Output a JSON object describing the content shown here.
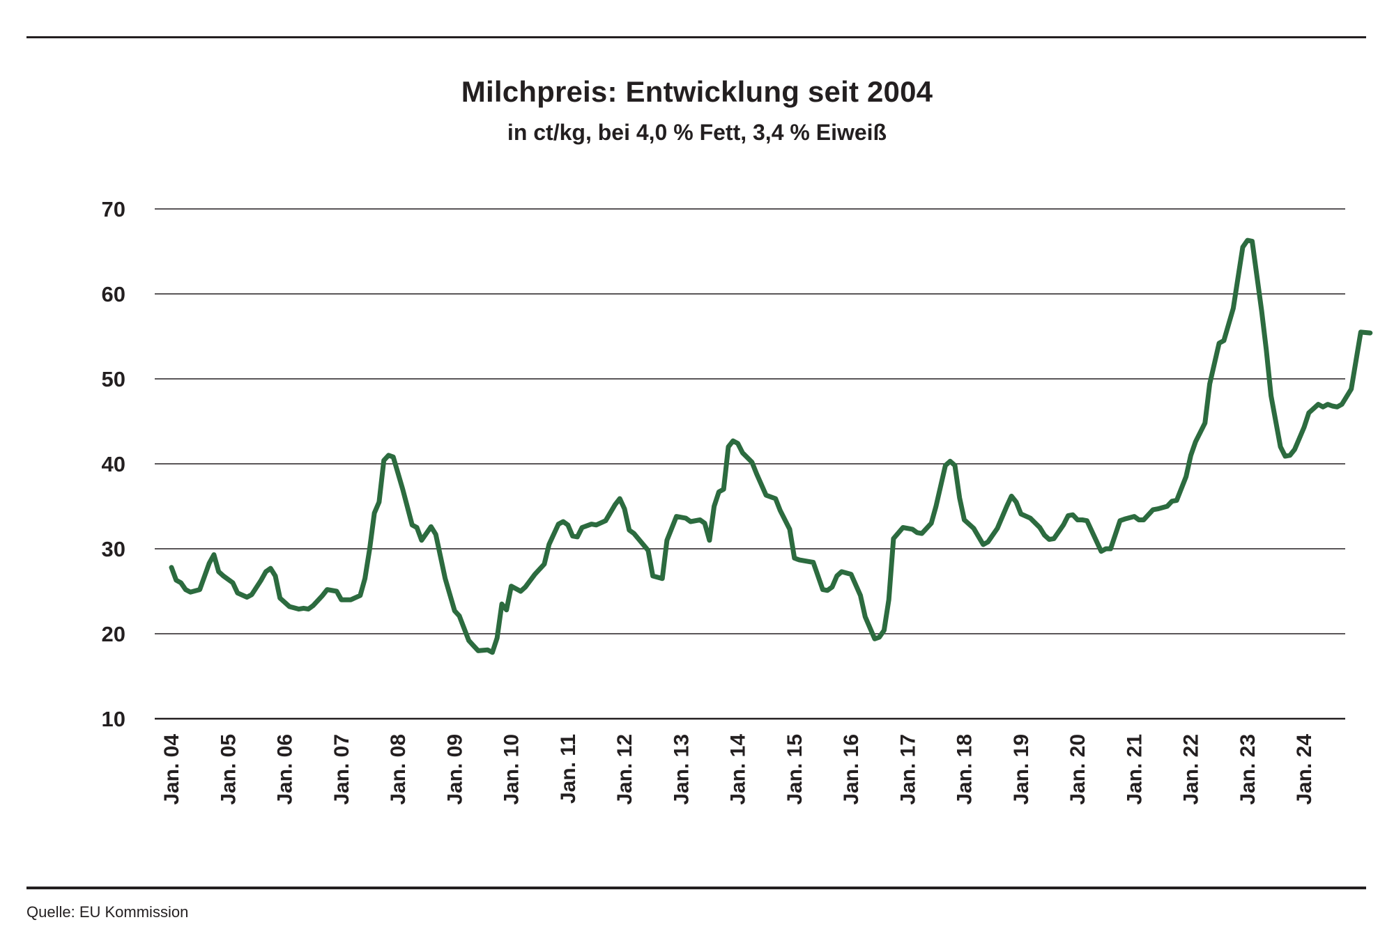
{
  "chart_data": {
    "type": "line",
    "title": "Milchpreis: Entwicklung seit 2004",
    "subtitle": "in ct/kg, bei 4,0 % Fett, 3,4 % Eiweiß",
    "xlabel": "",
    "ylabel": "",
    "ylim": [
      10,
      70
    ],
    "yticks": [
      10,
      20,
      30,
      40,
      50,
      60,
      70
    ],
    "grid": true,
    "color": "#2c6b3f",
    "x_start": "2004-01",
    "x_end": "2024-10",
    "xtick_labels": [
      "Jan. 04",
      "Jan. 05",
      "Jan. 06",
      "Jan. 07",
      "Jan. 08",
      "Jan. 09",
      "Jan. 10",
      "Jan. 11",
      "Jan. 12",
      "Jan. 13",
      "Jan. 14",
      "Jan. 15",
      "Jan. 16",
      "Jan. 17",
      "Jan. 18",
      "Jan. 19",
      "Jan. 20",
      "Jan. 21",
      "Jan. 22",
      "Jan. 23",
      "Jan. 24"
    ],
    "series": [
      {
        "points": [
          [
            "2004-01",
            27.8
          ],
          [
            "2004-02",
            26.3
          ],
          [
            "2004-03",
            26.0
          ],
          [
            "2004-04",
            25.2
          ],
          [
            "2004-05",
            24.9
          ],
          [
            "2004-07",
            25.2
          ],
          [
            "2004-09",
            28.3
          ],
          [
            "2004-10",
            29.3
          ],
          [
            "2004-11",
            27.3
          ],
          [
            "2004-12",
            26.8
          ],
          [
            "2005-02",
            26.0
          ],
          [
            "2005-03",
            24.8
          ],
          [
            "2005-05",
            24.3
          ],
          [
            "2005-06",
            24.6
          ],
          [
            "2005-08",
            26.3
          ],
          [
            "2005-09",
            27.3
          ],
          [
            "2005-10",
            27.7
          ],
          [
            "2005-11",
            26.8
          ],
          [
            "2005-12",
            24.2
          ],
          [
            "2006-02",
            23.2
          ],
          [
            "2006-04",
            22.9
          ],
          [
            "2006-05",
            23.0
          ],
          [
            "2006-06",
            22.9
          ],
          [
            "2006-07",
            23.3
          ],
          [
            "2006-09",
            24.5
          ],
          [
            "2006-10",
            25.2
          ],
          [
            "2006-12",
            25.0
          ],
          [
            "2007-01",
            24.0
          ],
          [
            "2007-03",
            24.0
          ],
          [
            "2007-05",
            24.5
          ],
          [
            "2007-06",
            26.5
          ],
          [
            "2007-07",
            30.0
          ],
          [
            "2007-08",
            34.2
          ],
          [
            "2007-09",
            35.5
          ],
          [
            "2007-10",
            40.4
          ],
          [
            "2007-11",
            41.0
          ],
          [
            "2007-12",
            40.8
          ],
          [
            "2008-02",
            37.0
          ],
          [
            "2008-04",
            32.8
          ],
          [
            "2008-05",
            32.5
          ],
          [
            "2008-06",
            31.0
          ],
          [
            "2008-08",
            32.6
          ],
          [
            "2008-09",
            31.7
          ],
          [
            "2008-11",
            26.5
          ],
          [
            "2009-01",
            22.7
          ],
          [
            "2009-02",
            22.1
          ],
          [
            "2009-04",
            19.2
          ],
          [
            "2009-05",
            18.6
          ],
          [
            "2009-06",
            18.0
          ],
          [
            "2009-08",
            18.1
          ],
          [
            "2009-09",
            17.8
          ],
          [
            "2009-10",
            19.5
          ],
          [
            "2009-11",
            23.5
          ],
          [
            "2009-12",
            22.8
          ],
          [
            "2010-01",
            25.6
          ],
          [
            "2010-03",
            25.0
          ],
          [
            "2010-04",
            25.5
          ],
          [
            "2010-06",
            27.0
          ],
          [
            "2010-08",
            28.2
          ],
          [
            "2010-09",
            30.5
          ],
          [
            "2010-11",
            32.9
          ],
          [
            "2010-12",
            33.2
          ],
          [
            "2011-01",
            32.8
          ],
          [
            "2011-02",
            31.5
          ],
          [
            "2011-03",
            31.4
          ],
          [
            "2011-04",
            32.5
          ],
          [
            "2011-06",
            32.9
          ],
          [
            "2011-07",
            32.8
          ],
          [
            "2011-09",
            33.3
          ],
          [
            "2011-11",
            35.2
          ],
          [
            "2011-12",
            35.9
          ],
          [
            "2012-01",
            34.7
          ],
          [
            "2012-02",
            32.2
          ],
          [
            "2012-03",
            31.8
          ],
          [
            "2012-06",
            29.8
          ],
          [
            "2012-07",
            26.8
          ],
          [
            "2012-09",
            26.5
          ],
          [
            "2012-10",
            31.0
          ],
          [
            "2012-12",
            33.8
          ],
          [
            "2013-02",
            33.6
          ],
          [
            "2013-03",
            33.2
          ],
          [
            "2013-05",
            33.4
          ],
          [
            "2013-06",
            33.0
          ],
          [
            "2013-07",
            31.0
          ],
          [
            "2013-08",
            35.0
          ],
          [
            "2013-09",
            36.7
          ],
          [
            "2013-10",
            37.0
          ],
          [
            "2013-11",
            42.0
          ],
          [
            "2013-12",
            42.7
          ],
          [
            "2014-01",
            42.4
          ],
          [
            "2014-02",
            41.3
          ],
          [
            "2014-04",
            40.2
          ],
          [
            "2014-05",
            38.8
          ],
          [
            "2014-07",
            36.3
          ],
          [
            "2014-09",
            35.9
          ],
          [
            "2014-10",
            34.5
          ],
          [
            "2014-12",
            32.3
          ],
          [
            "2015-01",
            28.9
          ],
          [
            "2015-02",
            28.7
          ],
          [
            "2015-04",
            28.5
          ],
          [
            "2015-05",
            28.4
          ],
          [
            "2015-07",
            25.2
          ],
          [
            "2015-08",
            25.1
          ],
          [
            "2015-09",
            25.5
          ],
          [
            "2015-10",
            26.8
          ],
          [
            "2015-11",
            27.3
          ],
          [
            "2016-01",
            27.0
          ],
          [
            "2016-03",
            24.5
          ],
          [
            "2016-04",
            22.0
          ],
          [
            "2016-06",
            19.4
          ],
          [
            "2016-07",
            19.6
          ],
          [
            "2016-08",
            20.4
          ],
          [
            "2016-09",
            24.0
          ],
          [
            "2016-10",
            31.2
          ],
          [
            "2016-12",
            32.5
          ],
          [
            "2017-02",
            32.3
          ],
          [
            "2017-03",
            31.9
          ],
          [
            "2017-04",
            31.8
          ],
          [
            "2017-06",
            33.0
          ],
          [
            "2017-07",
            35.0
          ],
          [
            "2017-09",
            39.8
          ],
          [
            "2017-10",
            40.3
          ],
          [
            "2017-11",
            39.8
          ],
          [
            "2017-12",
            36.0
          ],
          [
            "2018-01",
            33.4
          ],
          [
            "2018-03",
            32.4
          ],
          [
            "2018-05",
            30.5
          ],
          [
            "2018-06",
            30.8
          ],
          [
            "2018-08",
            32.4
          ],
          [
            "2018-10",
            35.0
          ],
          [
            "2018-11",
            36.2
          ],
          [
            "2018-12",
            35.5
          ],
          [
            "2019-01",
            34.1
          ],
          [
            "2019-03",
            33.6
          ],
          [
            "2019-05",
            32.5
          ],
          [
            "2019-06",
            31.6
          ],
          [
            "2019-07",
            31.1
          ],
          [
            "2019-08",
            31.2
          ],
          [
            "2019-10",
            32.8
          ],
          [
            "2019-11",
            33.9
          ],
          [
            "2019-12",
            34.0
          ],
          [
            "2020-01",
            33.4
          ],
          [
            "2020-02",
            33.4
          ],
          [
            "2020-03",
            33.3
          ],
          [
            "2020-05",
            30.9
          ],
          [
            "2020-06",
            29.7
          ],
          [
            "2020-07",
            30.0
          ],
          [
            "2020-08",
            30.0
          ],
          [
            "2020-10",
            33.3
          ],
          [
            "2020-11",
            33.5
          ],
          [
            "2021-01",
            33.8
          ],
          [
            "2021-02",
            33.4
          ],
          [
            "2021-03",
            33.4
          ],
          [
            "2021-05",
            34.6
          ],
          [
            "2021-06",
            34.7
          ],
          [
            "2021-08",
            35.0
          ],
          [
            "2021-09",
            35.6
          ],
          [
            "2021-10",
            35.7
          ],
          [
            "2021-12",
            38.5
          ],
          [
            "2022-01",
            41.0
          ],
          [
            "2022-02",
            42.6
          ],
          [
            "2022-04",
            44.8
          ],
          [
            "2022-05",
            49.4
          ],
          [
            "2022-07",
            54.2
          ],
          [
            "2022-08",
            54.5
          ],
          [
            "2022-10",
            58.3
          ],
          [
            "2022-12",
            65.5
          ],
          [
            "2023-01",
            66.3
          ],
          [
            "2023-02",
            66.2
          ],
          [
            "2023-04",
            58.0
          ],
          [
            "2023-05",
            53.4
          ],
          [
            "2023-06",
            48.0
          ],
          [
            "2023-08",
            42.0
          ],
          [
            "2023-09",
            40.9
          ],
          [
            "2023-10",
            41.0
          ],
          [
            "2023-11",
            41.7
          ],
          [
            "2024-01",
            44.3
          ],
          [
            "2024-02",
            46.0
          ],
          [
            "2024-04",
            47.0
          ],
          [
            "2024-05",
            46.7
          ],
          [
            "2024-06",
            47.0
          ],
          [
            "2024-07",
            46.8
          ],
          [
            "2024-08",
            46.7
          ],
          [
            "2024-09",
            47.0
          ],
          [
            "2024-11",
            48.8
          ],
          [
            "2025-01",
            55.5
          ],
          [
            "2025-03",
            55.4
          ]
        ]
      }
    ],
    "source": "Quelle: EU Kommission"
  }
}
